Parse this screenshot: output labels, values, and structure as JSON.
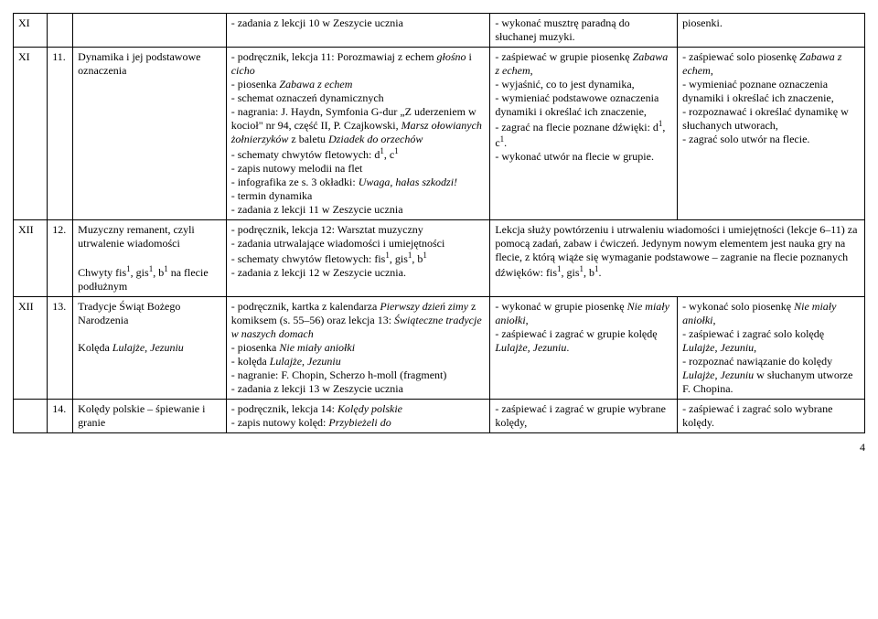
{
  "rows": [
    {
      "month": "XI",
      "num": "",
      "topic": "",
      "content": "- zadania z lekcji 10 w Zeszycie ucznia",
      "out1": "- wykonać musztrę paradną do słuchanej muzyki.",
      "out2": "piosenki."
    },
    {
      "month": "XI",
      "num": "11.",
      "topic": "Dynamika i jej podstawowe oznaczenia",
      "content": "- podręcznik, lekcja 11: Porozmawiaj z echem <i>głośno</i> i <i>cicho</i><br>- piosenka <i>Zabawa z echem</i><br>- schemat oznaczeń dynamicznych<br>- nagrania: J. Haydn, Symfonia G-dur „Z uderzeniem w kocioł\" nr 94, część II, P. Czajkowski, <i>Marsz ołowianych żołnierzyków</i> z baletu <i>Dziadek do orzechów</i><br>- schematy chwytów fletowych: d<sup>1</sup>, c<sup>1</sup><br>- zapis nutowy melodii na flet<br>- infografika ze s. 3 okładki: <i>Uwaga, hałas szkodzi!</i><br>- termin dynamika<br>- zadania z lekcji 11 w Zeszycie ucznia",
      "out1": "- zaśpiewać w grupie piosenkę <i>Zabawa z echem</i>,<br>- wyjaśnić, co to jest dynamika,<br>- wymieniać podstawowe oznaczenia dynamiki i określać ich znaczenie,<br>- zagrać na flecie poznane dźwięki: d<sup>1</sup>, c<sup>1</sup>.<br>- wykonać utwór na flecie w grupie.",
      "out2": "- zaśpiewać solo piosenkę <i>Zabawa z echem</i>,<br>- wymieniać poznane oznaczenia dynamiki i określać ich znaczenie,<br>- rozpoznawać i określać dynamikę w słuchanych utworach,<br>- zagrać solo utwór na flecie."
    },
    {
      "month": "XII",
      "num": "12.",
      "topic": "Muzyczny remanent, czyli utrwalenie wiadomości<br><br>Chwyty fis<sup>1</sup>, gis<sup>1</sup>, b<sup>1</sup> na flecie podłużnym",
      "content": "- podręcznik, lekcja 12: Warsztat muzyczny<br>- zadania utrwalające wiadomości i umiejętności<br>- schematy chwytów fletowych: fis<sup>1</sup>, gis<sup>1</sup>, b<sup>1</sup><br>- zadania z lekcji 12 w Zeszycie ucznia.",
      "out1_colspan": "Lekcja służy powtórzeniu i utrwaleniu wiadomości i umiejętności (lekcje 6–11) za pomocą zadań, zabaw i ćwiczeń. Jedynym nowym elementem jest nauka gry na flecie, z którą wiąże się wymaganie podstawowe – zagranie na flecie poznanych dźwięków: fis<sup>1</sup>, gis<sup>1</sup>, b<sup>1</sup>."
    },
    {
      "month": "XII",
      "num": "13.",
      "topic": "Tradycje Świąt Bożego Narodzenia<br><br>Kolęda <i>Lulajże, Jezuniu</i>",
      "content": "- podręcznik, kartka z kalendarza <i>Pierwszy dzień zimy</i> z komiksem (s. 55–56) oraz lekcja 13: <i>Świąteczne tradycje w naszych domach</i><br>- piosenka <i>Nie miały aniołki</i><br>- kolęda <i>Lulajże, Jezuniu</i><br>- nagranie: F. Chopin, Scherzo h-moll (fragment)<br>- zadania z lekcji 13 w Zeszycie ucznia",
      "out1": "- wykonać w grupie piosenkę <i>Nie miały aniołki</i>,<br>- zaśpiewać i zagrać w grupie kolędę <i>Lulajże, Jezuniu</i>.",
      "out2": "- wykonać solo piosenkę <i>Nie miały aniołki</i>,<br>- zaśpiewać i zagrać solo kolędę <i>Lulajże, Jezuniu</i>,<br>- rozpoznać nawiązanie do kolędy <i>Lulajże, Jezuniu</i> w słuchanym utworze F. Chopina."
    },
    {
      "month": "",
      "num": "14.",
      "topic": "Kolędy polskie – śpiewanie i granie",
      "content": "- podręcznik, lekcja 14: <i>Kolędy polskie</i><br>- zapis nutowy kolęd: <i>Przybieżeli do</i>",
      "out1": "- zaśpiewać i zagrać w grupie wybrane kolędy,",
      "out2": "- zaśpiewać i zagrać solo wybrane kolędy."
    }
  ],
  "pagenum": "4"
}
